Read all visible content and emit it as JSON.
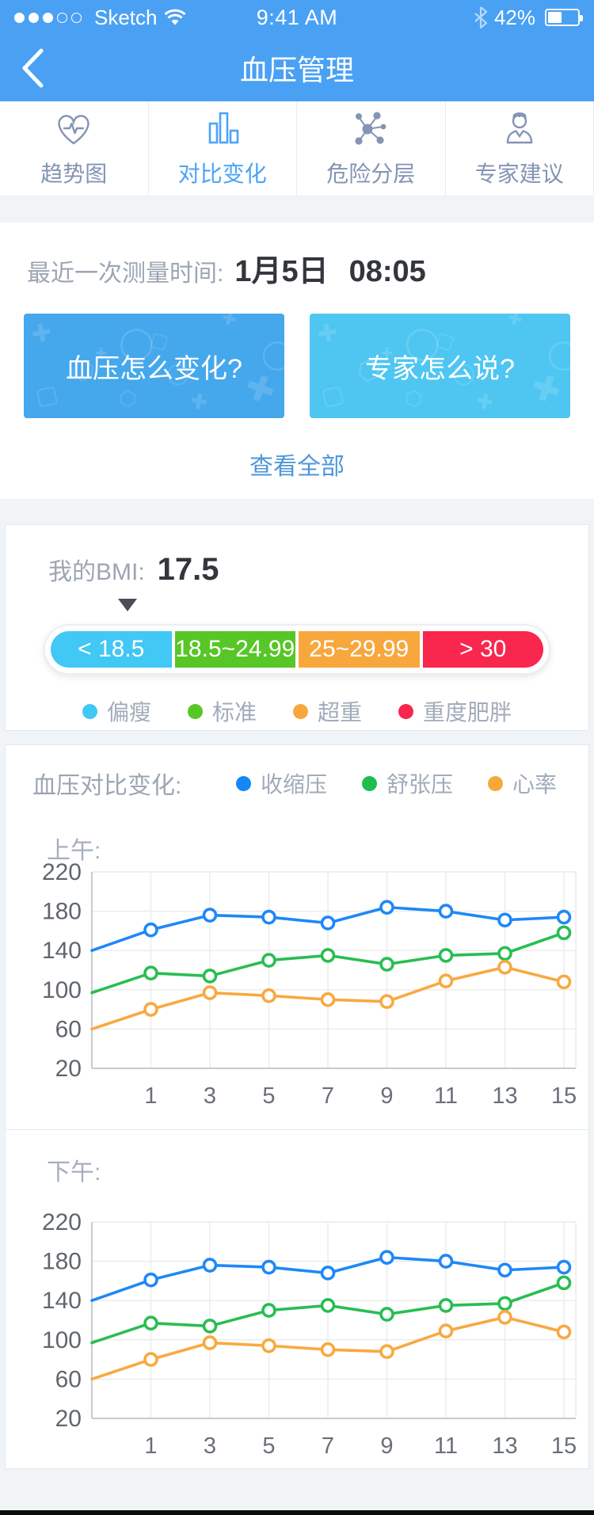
{
  "status_bar": {
    "carrier": "Sketch",
    "signal_dots_filled": 3,
    "signal_dots_total": 5,
    "time": "9:41 AM",
    "battery_percent": "42%",
    "battery_level": 42
  },
  "nav": {
    "title": "血压管理"
  },
  "tabs": [
    {
      "label": "趋势图",
      "icon": "heart-pulse-icon",
      "active": false
    },
    {
      "label": "对比变化",
      "icon": "bar-chart-icon",
      "active": true
    },
    {
      "label": "危险分层",
      "icon": "molecule-icon",
      "active": false
    },
    {
      "label": "专家建议",
      "icon": "doctor-icon",
      "active": false
    }
  ],
  "measurement": {
    "label": "最近一次测量时间:",
    "date": "1月5日",
    "time": "08:05"
  },
  "promo_cards": [
    {
      "label": "血压怎么变化?",
      "color": "#45A8EC"
    },
    {
      "label": "专家怎么说?",
      "color": "#4FC6F2"
    }
  ],
  "view_all": "查看全部",
  "bmi": {
    "label": "我的BMI:",
    "value": "17.5",
    "marker_position_pct": 16.5,
    "segments": [
      {
        "range": "< 18.5",
        "color": "#41C8F4",
        "legend": "偏瘦"
      },
      {
        "range": "18.5~24.99",
        "color": "#57C627",
        "legend": "标准"
      },
      {
        "range": "25~29.99",
        "color": "#F8A73D",
        "legend": "超重"
      },
      {
        "range": "> 30",
        "color": "#F9264E",
        "legend": "重度肥胖"
      }
    ]
  },
  "chart_section": {
    "title": "血压对比变化:",
    "legend": [
      {
        "label": "收缩压",
        "color": "#1588F5"
      },
      {
        "label": "舒张压",
        "color": "#1DBE4F"
      },
      {
        "label": "心率",
        "color": "#F6A93B"
      }
    ],
    "morning_label": "上午:",
    "afternoon_label": "下午:"
  },
  "chart_data": [
    {
      "type": "line",
      "title": "上午",
      "x": [
        0,
        1,
        3,
        5,
        7,
        9,
        11,
        13,
        15
      ],
      "xtick_labels": [
        "1",
        "3",
        "5",
        "7",
        "9",
        "11",
        "13",
        "15"
      ],
      "ylim": [
        20,
        220
      ],
      "yticks": [
        220,
        180,
        140,
        100,
        60,
        20
      ],
      "grid": true,
      "series": [
        {
          "name": "收缩压",
          "color": "#1E88F7",
          "values": [
            140,
            161,
            176,
            174,
            168,
            184,
            180,
            171,
            174
          ]
        },
        {
          "name": "舒张压",
          "color": "#28BE52",
          "values": [
            97,
            117,
            114,
            130,
            135,
            126,
            135,
            137,
            158
          ]
        },
        {
          "name": "心率",
          "color": "#F8A93F",
          "values": [
            60,
            80,
            97,
            94,
            90,
            88,
            109,
            123,
            108
          ]
        }
      ]
    },
    {
      "type": "line",
      "title": "下午",
      "x": [
        0,
        1,
        3,
        5,
        7,
        9,
        11,
        13,
        15
      ],
      "xtick_labels": [
        "1",
        "3",
        "5",
        "7",
        "9",
        "11",
        "13",
        "15"
      ],
      "ylim": [
        20,
        220
      ],
      "yticks": [
        220,
        180,
        140,
        100,
        60,
        20
      ],
      "grid": true,
      "series": [
        {
          "name": "收缩压",
          "color": "#1E88F7",
          "values": [
            140,
            161,
            176,
            174,
            168,
            184,
            180,
            171,
            174
          ]
        },
        {
          "name": "舒张压",
          "color": "#28BE52",
          "values": [
            97,
            117,
            114,
            130,
            135,
            126,
            135,
            137,
            158
          ]
        },
        {
          "name": "心率",
          "color": "#F8A93F",
          "values": [
            60,
            80,
            97,
            94,
            90,
            88,
            109,
            123,
            108
          ]
        }
      ]
    }
  ]
}
